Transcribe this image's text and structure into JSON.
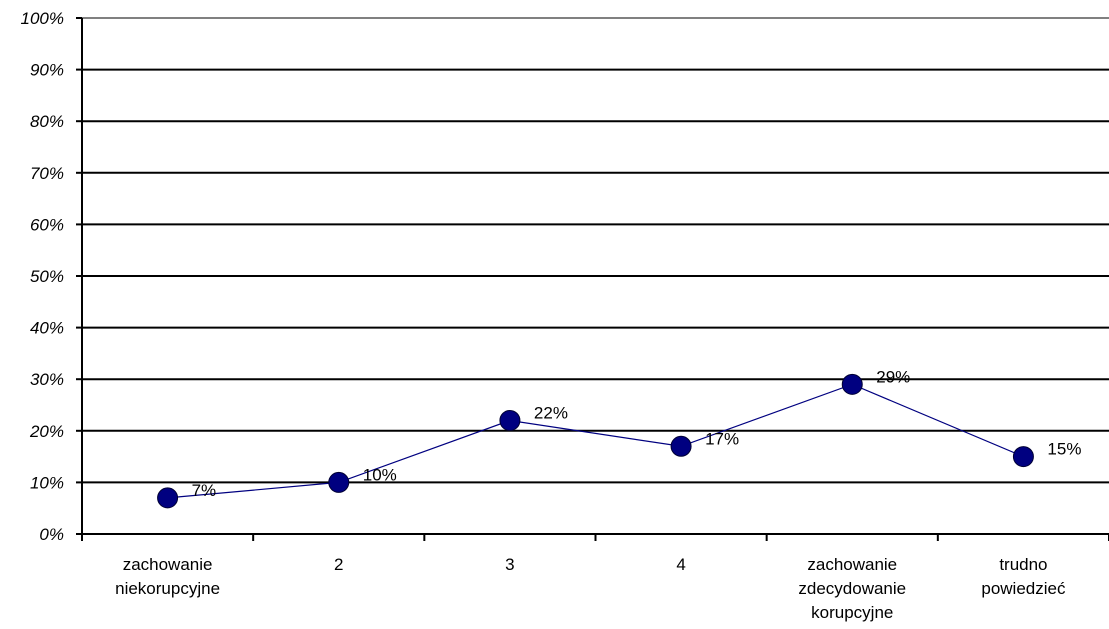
{
  "chart_data": {
    "type": "line",
    "categories": [
      [
        "zachowanie",
        "niekorupcyjne"
      ],
      [
        "2"
      ],
      [
        "3"
      ],
      [
        "4"
      ],
      [
        "zachowanie",
        "zdecydowanie",
        "korupcyjne"
      ],
      [
        "trudno",
        "powiedzieć"
      ]
    ],
    "values": [
      7,
      10,
      22,
      17,
      29,
      15
    ],
    "data_labels": [
      "7%",
      "10%",
      "22%",
      "17%",
      "29%",
      "15%"
    ],
    "y_ticks": [
      "0%",
      "10%",
      "20%",
      "30%",
      "40%",
      "50%",
      "60%",
      "70%",
      "80%",
      "90%",
      "100%"
    ],
    "ylim": [
      0,
      100
    ],
    "grid": true,
    "legend": "none",
    "colors": {
      "line": "#000080",
      "marker": "#000080",
      "grid": "#000000",
      "plot_border": "#808080"
    }
  }
}
